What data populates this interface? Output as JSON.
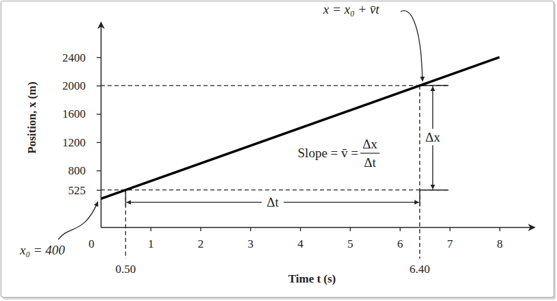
{
  "chart_data": {
    "type": "line",
    "x": [
      0,
      8
    ],
    "values": [
      400,
      2400
    ],
    "color": "#000000",
    "xlabel": "Time t (s)",
    "ylabel": "Position, x (m)",
    "xlim": [
      0,
      8.7
    ],
    "ylim": [
      0,
      2900
    ],
    "xticks": [
      0,
      1,
      2,
      3,
      4,
      5,
      6,
      7,
      8
    ],
    "yticks": [
      525,
      800,
      1200,
      1600,
      2000,
      2400
    ],
    "interval": {
      "x": [
        0.5,
        6.4
      ],
      "x_labels": [
        "0.50",
        "6.40"
      ],
      "y": [
        525,
        2000
      ],
      "dt_label": "Δt",
      "dx_label": "Δx"
    },
    "equation_label": "x = x₀ + v̄t",
    "x0_label": "x₀ = 400",
    "slope_label": "Slope = v̄ =",
    "slope_fraction": [
      "Δx",
      "Δt"
    ]
  }
}
